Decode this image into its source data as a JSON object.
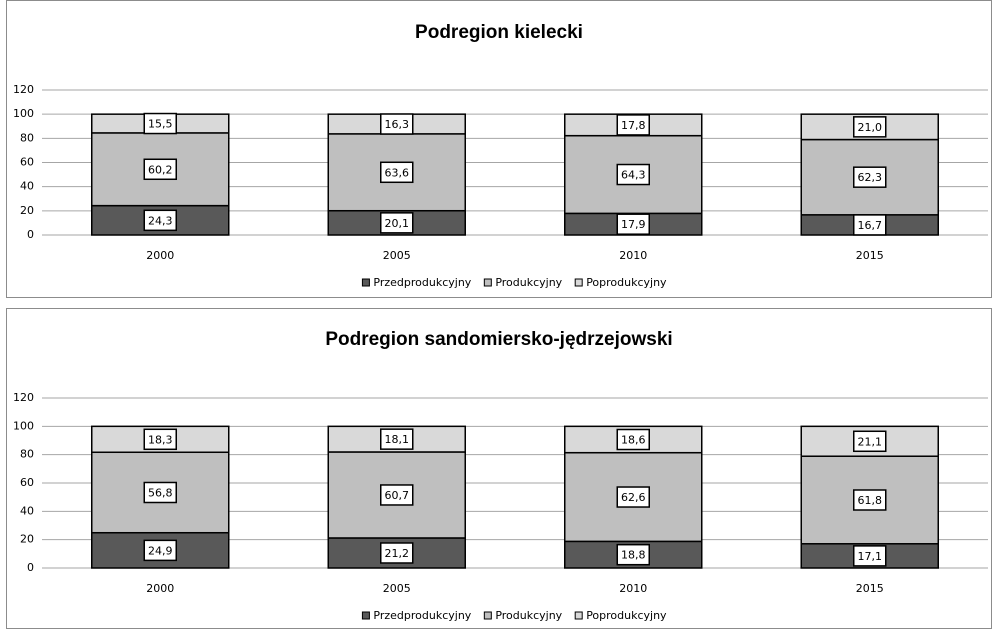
{
  "chart_data": [
    {
      "type": "bar",
      "stacked": true,
      "title": "Podregion kielecki",
      "categories": [
        "2000",
        "2005",
        "2010",
        "2015"
      ],
      "series": [
        {
          "name": "Przedprodukcyjny",
          "color": "#595959",
          "values": [
            24.3,
            20.1,
            17.9,
            16.7
          ],
          "value_labels": [
            "24,3",
            "20,1",
            "17,9",
            "16,7"
          ]
        },
        {
          "name": "Produkcyjny",
          "color": "#bfbfbf",
          "values": [
            60.2,
            63.6,
            64.3,
            62.3
          ],
          "value_labels": [
            "60,2",
            "63,6",
            "64,3",
            "62,3"
          ]
        },
        {
          "name": "Poprodukcyjny",
          "color": "#d9d9d9",
          "values": [
            15.5,
            16.3,
            17.8,
            21.0
          ],
          "value_labels": [
            "15,5",
            "16,3",
            "17,8",
            "21,0"
          ]
        }
      ],
      "ylim": [
        0,
        120
      ],
      "yticks": [
        0,
        20,
        40,
        60,
        80,
        100,
        120
      ],
      "grid": true,
      "legend": "bottom"
    },
    {
      "type": "bar",
      "stacked": true,
      "title": "Podregion sandomiersko-jędrzejowski",
      "categories": [
        "2000",
        "2005",
        "2010",
        "2015"
      ],
      "series": [
        {
          "name": "Przedprodukcyjny",
          "color": "#595959",
          "values": [
            24.9,
            21.2,
            18.8,
            17.1
          ],
          "value_labels": [
            "24,9",
            "21,2",
            "18,8",
            "17,1"
          ]
        },
        {
          "name": "Produkcyjny",
          "color": "#bfbfbf",
          "values": [
            56.8,
            60.7,
            62.6,
            61.8
          ],
          "value_labels": [
            "56,8",
            "60,7",
            "62,6",
            "61,8"
          ]
        },
        {
          "name": "Poprodukcyjny",
          "color": "#d9d9d9",
          "values": [
            18.3,
            18.1,
            18.6,
            21.1
          ],
          "value_labels": [
            "18,3",
            "18,1",
            "18,6",
            "21,1"
          ]
        }
      ],
      "ylim": [
        0,
        120
      ],
      "yticks": [
        0,
        20,
        40,
        60,
        80,
        100,
        120
      ],
      "grid": true,
      "legend": "bottom"
    }
  ]
}
